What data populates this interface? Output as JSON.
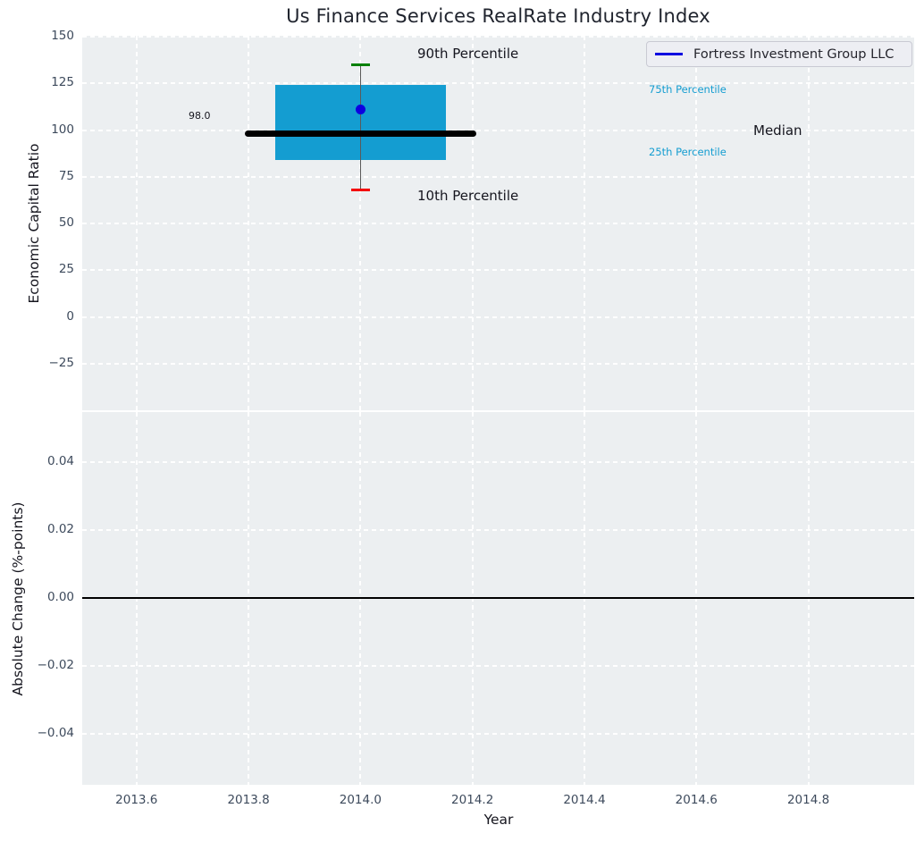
{
  "title": "Us Finance Services RealRate Industry Index",
  "legend": {
    "label": "Fortress Investment Group LLC",
    "position": "upper right"
  },
  "colors": {
    "figure_bg": "#ffffff",
    "plot_bg": "#eceff1",
    "grid": "#ffffff",
    "tick_label": "#3d4a5c",
    "box_fill": "#149dd1",
    "percentile_label": "#149dd1",
    "whisker": "#5a5a5a",
    "cap_90": "#008000",
    "cap_10": "#f40000",
    "median_line": "#000000",
    "company_dot": "#0d00e0",
    "legend_line": "#0d00e0",
    "zero_line": "#000000"
  },
  "chart_data": [
    {
      "type": "box",
      "title": "Us Finance Services RealRate Industry Index",
      "xlabel": "Year",
      "ylabel": "Economic Capital Ratio",
      "grid": true,
      "legend_position": "upper right",
      "x": 2014.0,
      "box": {
        "p90": 135,
        "p75": 124,
        "median": 98,
        "p25": 84,
        "p10": 68,
        "company_value": 111,
        "median_label": "98.0",
        "box_halfwidth_years": 0.152,
        "median_halfwidth_years": 0.207
      },
      "xlim": [
        2013.503,
        2014.989
      ],
      "ylim": [
        -49.9,
        150.5
      ],
      "xticks": [
        2013.6,
        2013.8,
        2014.0,
        2014.2,
        2014.4,
        2014.6,
        2014.8
      ],
      "xtick_labels": [
        "2013.6",
        "2013.8",
        "2014.0",
        "2014.2",
        "2014.4",
        "2014.6",
        "2014.8"
      ],
      "yticks": [
        150,
        125,
        100,
        75,
        50,
        25,
        0,
        -25
      ],
      "ytick_labels": [
        "150",
        "125",
        "100",
        "75",
        "50",
        "25",
        "0",
        "−25"
      ],
      "annotations": {
        "p90": "90th Percentile",
        "p75": "75th Percentile",
        "median": "Median",
        "p25": "25th Percentile",
        "p10": "10th Percentile",
        "median_value": "98.0"
      }
    },
    {
      "type": "line",
      "xlabel": "Year",
      "ylabel": "Absolute Change (%-points)",
      "grid": true,
      "series": [],
      "zero_line_y": 0.0,
      "xlim": [
        2013.503,
        2014.989
      ],
      "ylim": [
        -0.055,
        0.0548
      ],
      "yticks": [
        0.04,
        0.02,
        0.0,
        -0.02,
        -0.04
      ],
      "ytick_labels": [
        "0.04",
        "0.02",
        "0.00",
        "−0.02",
        "−0.04"
      ]
    }
  ]
}
